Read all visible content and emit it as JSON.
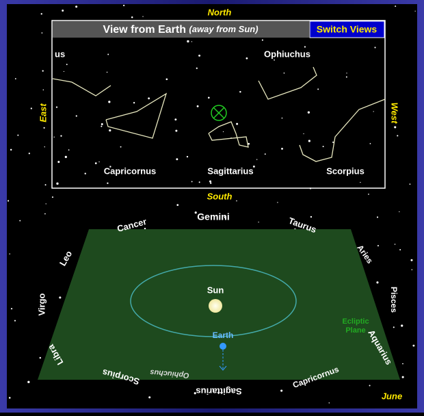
{
  "compass": {
    "north": "North",
    "south": "South",
    "east": "East",
    "west": "West"
  },
  "header": {
    "title": "View from Earth",
    "subtitle": "(away from Sun)",
    "button": "Switch Views"
  },
  "sky_view": {
    "labels": [
      "us",
      "Ophiuchus",
      "Capricornus",
      "Sagittarius",
      "Scorpius"
    ]
  },
  "orbit_view": {
    "zodiac": [
      "Gemini",
      "Cancer",
      "Taurus",
      "Leo",
      "Aries",
      "Virgo",
      "Pisces",
      "Libra",
      "Aquarius",
      "Ophiuchus",
      "Scorpius",
      "Capricornus",
      "Sagittarius"
    ],
    "sun": "Sun",
    "earth": "Earth",
    "plane": [
      "Ecliptic",
      "Plane"
    ],
    "month": "June"
  }
}
